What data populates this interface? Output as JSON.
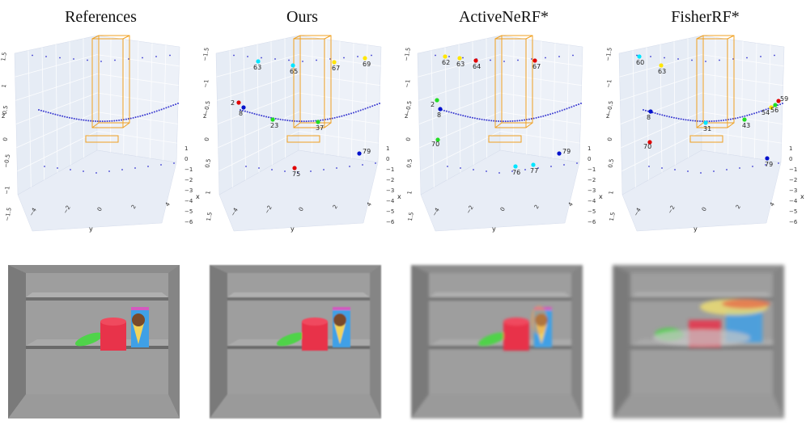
{
  "columns": [
    {
      "title": "References",
      "render_variant": "ref",
      "markers": [],
      "y_ticks": [
        "1.5",
        "1",
        "0.5",
        "0",
        "−0.5",
        "−1",
        "−1.5"
      ]
    },
    {
      "title": "Ours",
      "render_variant": "ours",
      "markers": [
        {
          "label": "63",
          "color": "#00e5ff"
        },
        {
          "label": "65",
          "color": "#00e5ff"
        },
        {
          "label": "67",
          "color": "#ffe600"
        },
        {
          "label": "69",
          "color": "#ffe600"
        },
        {
          "label": "2",
          "color": "#e00000"
        },
        {
          "label": "8",
          "color": "#0011cc"
        },
        {
          "label": "23",
          "color": "#22dd22"
        },
        {
          "label": "37",
          "color": "#22dd22"
        },
        {
          "label": "79",
          "color": "#0011cc"
        },
        {
          "label": "75",
          "color": "#e00000"
        }
      ],
      "y_ticks": [
        "−1.5",
        "−1",
        "−0.5",
        "0",
        "0.5",
        "1",
        "1.5"
      ]
    },
    {
      "title": "ActiveNeRF*",
      "render_variant": "active",
      "markers": [
        {
          "label": "62",
          "color": "#ffe600"
        },
        {
          "label": "63",
          "color": "#ffe600"
        },
        {
          "label": "64",
          "color": "#e00000"
        },
        {
          "label": "67",
          "color": "#e00000"
        },
        {
          "label": "2",
          "color": "#22dd22"
        },
        {
          "label": "8",
          "color": "#0011cc"
        },
        {
          "label": "70",
          "color": "#22dd22"
        },
        {
          "label": "76",
          "color": "#00e5ff"
        },
        {
          "label": "77",
          "color": "#00e5ff"
        },
        {
          "label": "79",
          "color": "#0011cc"
        }
      ],
      "y_ticks": [
        "−1.5",
        "−1",
        "−0.5",
        "0",
        "0.5",
        "1",
        "1.5"
      ]
    },
    {
      "title": "FisherRF*",
      "render_variant": "fisher",
      "markers": [
        {
          "label": "60",
          "color": "#00e5ff"
        },
        {
          "label": "63",
          "color": "#ffe600"
        },
        {
          "label": "8",
          "color": "#0011cc"
        },
        {
          "label": "31",
          "color": "#00e5ff"
        },
        {
          "label": "43",
          "color": "#22dd22"
        },
        {
          "label": "54",
          "color": "#ffe600"
        },
        {
          "label": "56",
          "color": "#22dd22"
        },
        {
          "label": "59",
          "color": "#e00000"
        },
        {
          "label": "70",
          "color": "#e00000"
        },
        {
          "label": "79",
          "color": "#0011cc"
        }
      ],
      "y_ticks": [
        "−1.5",
        "−1",
        "−0.5",
        "0",
        "0.5",
        "1",
        "1.5"
      ]
    }
  ],
  "axes": {
    "z_label": "z",
    "x_label": "x",
    "y_label": "y",
    "x_ticks": [
      "1",
      "0",
      "−1",
      "−2",
      "−3",
      "−4",
      "−5",
      "−6"
    ],
    "y_ticks": [
      "−4",
      "−2",
      "0",
      "2",
      "4"
    ]
  },
  "colors": {
    "camera_dot": "#3a3ad0",
    "box": "#f0a020",
    "pane": "#e6ecf5",
    "grid": "#ffffff"
  }
}
